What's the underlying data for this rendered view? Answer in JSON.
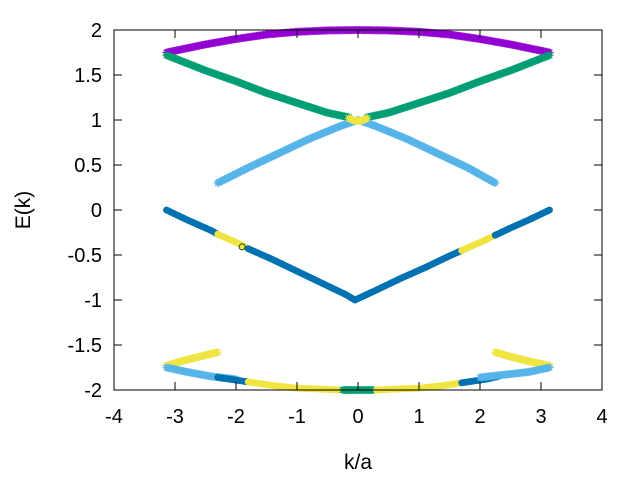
{
  "chart_data": {
    "type": "scatter",
    "title": "",
    "xlabel": "k/a",
    "ylabel": "E(k)",
    "xlim": [
      -4,
      4
    ],
    "ylim": [
      -2,
      2
    ],
    "xticks": [
      -4,
      -3,
      -2,
      -1,
      0,
      1,
      2,
      3,
      4
    ],
    "yticks": [
      -2,
      -1.5,
      -1,
      -0.5,
      0,
      0.5,
      1,
      1.5,
      2
    ],
    "xtick_labels": [
      "-4",
      "-3",
      "-2",
      "-1",
      "0",
      "1",
      "2",
      "3",
      "4"
    ],
    "ytick_labels": [
      "-2",
      "-1.5",
      "-1",
      "-0.5",
      "0",
      "0.5",
      "1",
      "1.5",
      "2"
    ],
    "grid": false,
    "legend": "none",
    "colors": {
      "purple": "#9400d3",
      "green": "#009e73",
      "lightblue": "#56b4e9",
      "darkblue": "#0072b2",
      "yellow": "#f0e442"
    },
    "series": [
      {
        "color": "purple",
        "marker": "star",
        "x": [
          -3.14,
          -2.5,
          -2.0,
          -1.5,
          -1.0,
          -0.5,
          0.0,
          0.5,
          1.0,
          1.5,
          2.0,
          2.5,
          3.14
        ],
        "y": [
          1.75,
          1.84,
          1.9,
          1.95,
          1.98,
          1.995,
          2.0,
          1.995,
          1.98,
          1.95,
          1.9,
          1.84,
          1.75
        ]
      },
      {
        "color": "green",
        "marker": "star",
        "x": [
          -3.14,
          -2.5,
          -2.0,
          -1.5,
          -1.0,
          -0.5,
          -0.15
        ],
        "y": [
          1.72,
          1.55,
          1.43,
          1.3,
          1.19,
          1.08,
          1.03
        ]
      },
      {
        "color": "green",
        "marker": "star",
        "x": [
          0.15,
          0.5,
          1.0,
          1.5,
          2.0,
          2.5,
          3.14
        ],
        "y": [
          1.03,
          1.08,
          1.19,
          1.3,
          1.43,
          1.55,
          1.72
        ]
      },
      {
        "color": "lightblue",
        "marker": "star",
        "x": [
          -2.3,
          -1.8,
          -1.3,
          -0.8,
          -0.3,
          0.0
        ],
        "y": [
          0.3,
          0.47,
          0.63,
          0.79,
          0.93,
          1.0
        ]
      },
      {
        "color": "lightblue",
        "marker": "star",
        "x": [
          0.0,
          0.3,
          0.8,
          1.3,
          1.8,
          2.25
        ],
        "y": [
          1.0,
          0.93,
          0.79,
          0.63,
          0.47,
          0.3
        ]
      },
      {
        "color": "yellow",
        "marker": "star",
        "x": [
          -0.15,
          -0.05,
          0.05,
          0.15
        ],
        "y": [
          1.02,
          0.99,
          0.99,
          1.02
        ]
      },
      {
        "color": "darkblue",
        "marker": "circle",
        "x": [
          -3.14,
          -2.8,
          -2.4,
          -2.3
        ],
        "y": [
          0.0,
          -0.11,
          -0.23,
          -0.27
        ]
      },
      {
        "color": "yellow",
        "marker": "circle",
        "x": [
          -2.3,
          -2.1,
          -1.9,
          -1.8
        ],
        "y": [
          -0.27,
          -0.33,
          -0.39,
          -0.43
        ]
      },
      {
        "color": "darkblue",
        "marker": "circle",
        "x": [
          -1.8,
          -1.4,
          -1.0,
          -0.6,
          -0.2,
          -0.05
        ],
        "y": [
          -0.43,
          -0.55,
          -0.68,
          -0.81,
          -0.94,
          -1.0
        ]
      },
      {
        "color": "darkblue",
        "marker": "circle",
        "x": [
          -0.05,
          0.3,
          0.7,
          1.1,
          1.5,
          1.7
        ],
        "y": [
          -1.0,
          -0.89,
          -0.76,
          -0.64,
          -0.51,
          -0.45
        ]
      },
      {
        "color": "yellow",
        "marker": "circle",
        "x": [
          1.7,
          1.9,
          2.1,
          2.25
        ],
        "y": [
          -0.45,
          -0.39,
          -0.33,
          -0.28
        ]
      },
      {
        "color": "darkblue",
        "marker": "circle",
        "x": [
          2.25,
          2.5,
          2.8,
          3.14
        ],
        "y": [
          -0.28,
          -0.2,
          -0.11,
          0.0
        ]
      },
      {
        "color": "yellow",
        "marker": "star",
        "x": [
          -3.14,
          -2.9,
          -2.6,
          -2.3
        ],
        "y": [
          -1.73,
          -1.68,
          -1.63,
          -1.58
        ]
      },
      {
        "color": "yellow",
        "marker": "star",
        "x": [
          2.25,
          2.5,
          2.8,
          3.14
        ],
        "y": [
          -1.58,
          -1.63,
          -1.68,
          -1.73
        ]
      },
      {
        "color": "lightblue",
        "marker": "star",
        "x": [
          -3.14,
          -2.8,
          -2.4,
          -2.0
        ],
        "y": [
          -1.75,
          -1.8,
          -1.85,
          -1.88
        ]
      },
      {
        "color": "darkblue",
        "marker": "circle",
        "x": [
          -2.3,
          -2.1,
          -1.9,
          -1.8
        ],
        "y": [
          -1.86,
          -1.88,
          -1.9,
          -1.91
        ]
      },
      {
        "color": "yellow",
        "marker": "circle",
        "x": [
          -1.8,
          -1.4,
          -1.0,
          -0.6,
          -0.3
        ],
        "y": [
          -1.91,
          -1.95,
          -1.98,
          -1.99,
          -2.0
        ]
      },
      {
        "color": "green",
        "marker": "star",
        "x": [
          -0.25,
          -0.15,
          -0.05,
          0.05,
          0.15,
          0.25
        ],
        "y": [
          -2.0,
          -2.0,
          -2.0,
          -2.0,
          -2.0,
          -2.0
        ]
      },
      {
        "color": "yellow",
        "marker": "circle",
        "x": [
          0.3,
          0.6,
          1.0,
          1.4,
          1.7
        ],
        "y": [
          -2.0,
          -1.99,
          -1.98,
          -1.95,
          -1.92
        ]
      },
      {
        "color": "darkblue",
        "marker": "circle",
        "x": [
          1.7,
          1.9,
          2.1,
          2.3
        ],
        "y": [
          -1.92,
          -1.9,
          -1.88,
          -1.85
        ]
      },
      {
        "color": "lightblue",
        "marker": "star",
        "x": [
          2.0,
          2.4,
          2.8,
          3.14
        ],
        "y": [
          -1.86,
          -1.83,
          -1.8,
          -1.75
        ]
      },
      {
        "color": "green",
        "marker": "circle",
        "x": [
          -1.9
        ],
        "y": [
          -0.41
        ]
      }
    ]
  }
}
